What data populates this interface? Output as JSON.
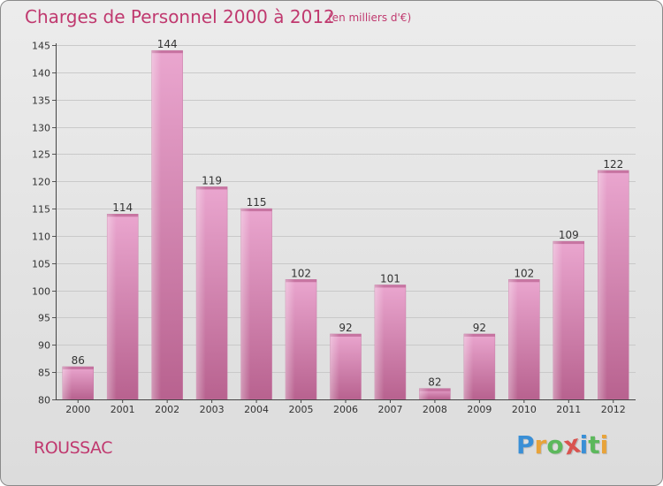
{
  "header": {
    "title": "Charges de Personnel 2000 à 2012",
    "subtitle": "(en milliers d'€)"
  },
  "footer": {
    "town": "ROUSSAC",
    "logo_text": "Proxiti",
    "logo_colors": [
      "#3a8fd6",
      "#e8a33a",
      "#5cb85c",
      "#d9534f",
      "#3a8fd6",
      "#5cb85c",
      "#e8a33a"
    ]
  },
  "chart_data": {
    "type": "bar",
    "title": "Charges de Personnel 2000 à 2012",
    "subtitle": "(en milliers d'€)",
    "categories": [
      "2000",
      "2001",
      "2002",
      "2003",
      "2004",
      "2005",
      "2006",
      "2007",
      "2008",
      "2009",
      "2010",
      "2011",
      "2012"
    ],
    "values": [
      86,
      114,
      144,
      119,
      115,
      102,
      92,
      101,
      82,
      92,
      102,
      109,
      122
    ],
    "ylim": [
      80,
      145
    ],
    "yticks": [
      80,
      85,
      90,
      95,
      100,
      105,
      110,
      115,
      120,
      125,
      130,
      135,
      140,
      145
    ],
    "xlabel": "",
    "ylabel": "",
    "grid": true,
    "bar_color": "#c7669a",
    "bar_color_light": "#e7a6cb"
  }
}
